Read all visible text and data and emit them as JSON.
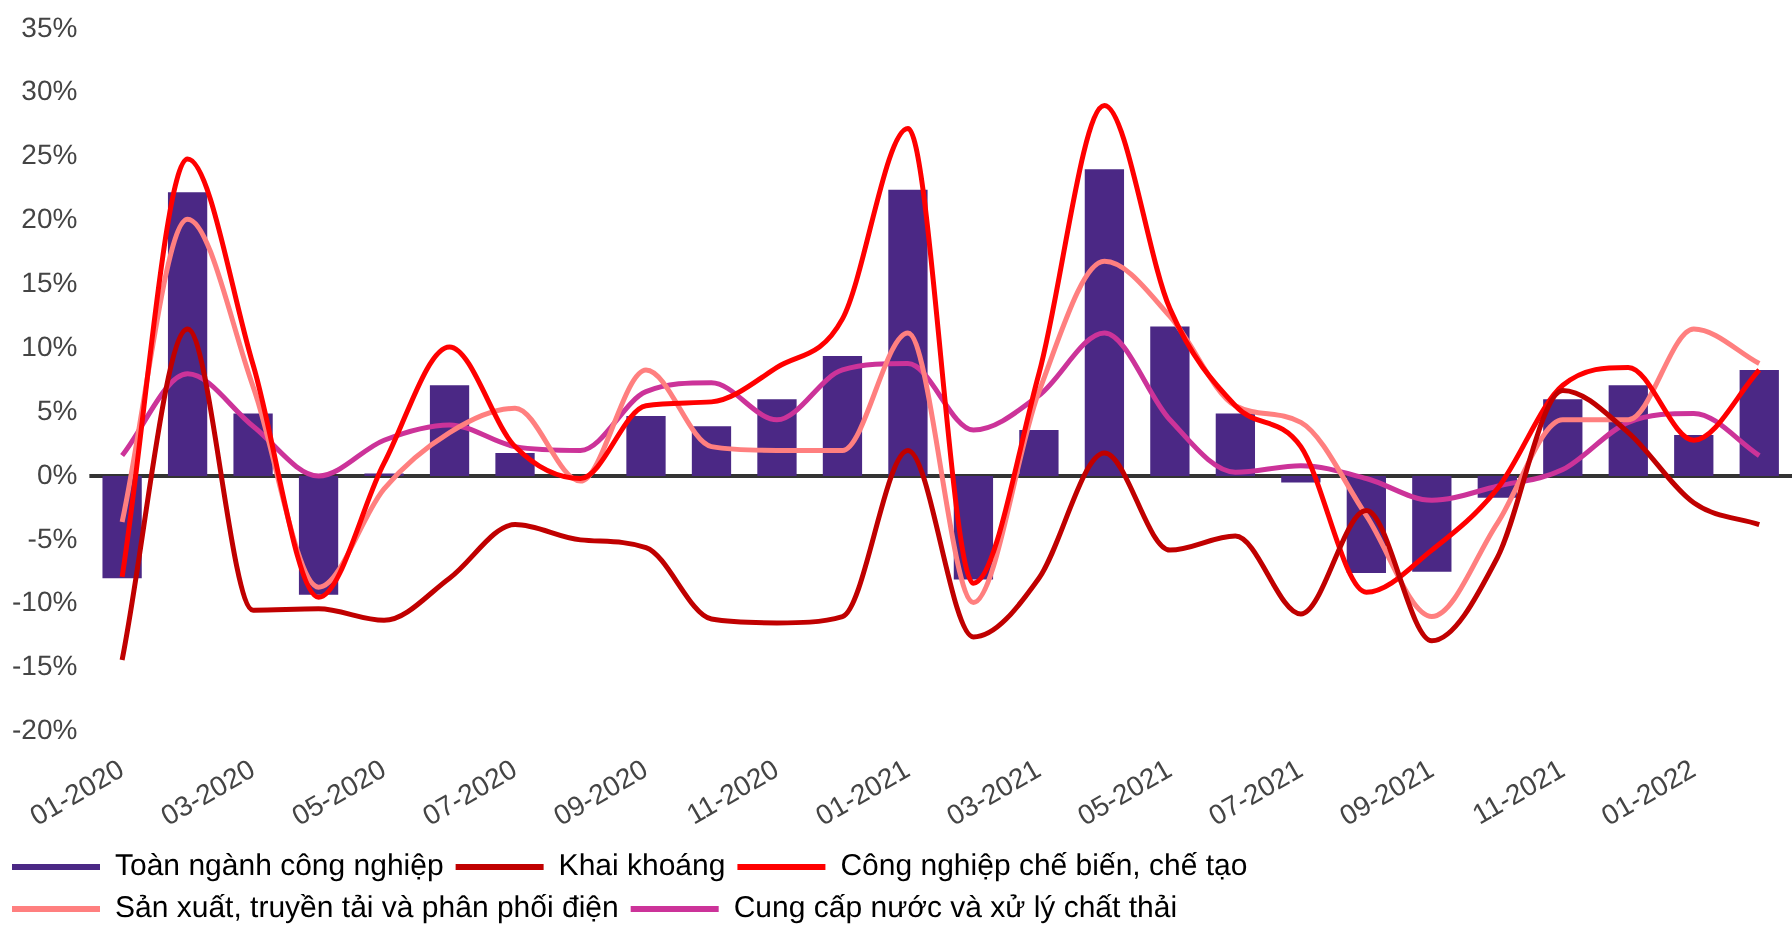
{
  "chart_data": {
    "type": "line",
    "categories": [
      "01-2020",
      null,
      "03-2020",
      null,
      "05-2020",
      null,
      "07-2020",
      null,
      "09-2020",
      null,
      "11-2020",
      null,
      "01-2021",
      null,
      "03-2021",
      null,
      "05-2021",
      null,
      "07-2021",
      null,
      "09-2021",
      null,
      "11-2021",
      null,
      "01-2022",
      null
    ],
    "series": [
      {
        "name": "Toàn ngành công nghiệp",
        "type": "bar",
        "color": "#4b2885",
        "values": [
          -8.0,
          22.2,
          4.9,
          -9.3,
          0.2,
          7.1,
          1.8,
          null,
          4.7,
          3.9,
          6.0,
          9.4,
          22.4,
          -8.1,
          3.6,
          24.0,
          11.7,
          4.9,
          -0.5,
          -7.6,
          -7.5,
          -1.7,
          6.0,
          7.1,
          3.2,
          8.3
        ]
      },
      {
        "name": "Khai khoáng",
        "color": "#c00000",
        "values": [
          -14.4,
          11.5,
          -10.5,
          -10.4,
          -11.3,
          -8.0,
          -3.8,
          -5.0,
          -5.6,
          -11.2,
          -11.5,
          -11.0,
          2.0,
          -12.6,
          -8.0,
          1.8,
          -5.8,
          -4.7,
          -10.8,
          -2.7,
          -12.9,
          -6.4,
          6.7,
          3.4,
          -2.1,
          -3.8
        ]
      },
      {
        "name": "Công nghiệp chế biến, chế tạo",
        "color": "#ff0000",
        "values": [
          -7.9,
          24.8,
          8.7,
          -9.5,
          1.0,
          10.1,
          2.3,
          -0.2,
          5.5,
          5.8,
          8.5,
          12.3,
          27.2,
          -8.4,
          8.0,
          29.0,
          13.1,
          5.5,
          2.3,
          -9.1,
          -5.8,
          -1.0,
          7.1,
          8.5,
          2.8,
          8.3
        ]
      },
      {
        "name": "Sản xuất, truyền tải và phân phối điện",
        "color": "#ff7f7f",
        "values": [
          -3.6,
          20.1,
          7.0,
          -8.7,
          -1.0,
          3.4,
          5.3,
          -0.4,
          8.3,
          2.3,
          2.0,
          2.0,
          11.2,
          -9.9,
          6.6,
          16.8,
          12.5,
          5.5,
          4.2,
          -3.1,
          -11.0,
          -3.7,
          4.4,
          4.4,
          11.5,
          8.8
        ]
      },
      {
        "name": "Cung cấp nước và xử lý chất thải",
        "color": "#cc3399",
        "values": [
          1.6,
          8.0,
          3.9,
          0.0,
          2.8,
          4.0,
          2.3,
          2.0,
          6.6,
          7.3,
          4.4,
          8.3,
          8.8,
          3.6,
          6.3,
          11.2,
          4.4,
          0.3,
          0.8,
          -0.2,
          -1.9,
          -0.8,
          0.5,
          4.2,
          4.9,
          1.6
        ]
      }
    ],
    "ylim": [
      -20,
      35
    ],
    "yticks": [
      {
        "value": -20,
        "label": "-20%"
      },
      {
        "value": -15,
        "label": "-15%"
      },
      {
        "value": -10,
        "label": "-10%"
      },
      {
        "value": -5,
        "label": "-5%"
      },
      {
        "value": 0,
        "label": "0%"
      },
      {
        "value": 5,
        "label": "5%"
      },
      {
        "value": 10,
        "label": "10%"
      },
      {
        "value": 15,
        "label": "15%"
      },
      {
        "value": 20,
        "label": "20%"
      },
      {
        "value": 25,
        "label": "25%"
      },
      {
        "value": 30,
        "label": "30%"
      },
      {
        "value": 35,
        "label": "35%"
      }
    ],
    "ref_lines": [
      {
        "axis": "y",
        "value": 0,
        "color": "#333333"
      }
    ],
    "grid": false,
    "legend": "bottom",
    "marker": "none",
    "line_style": "solid"
  }
}
